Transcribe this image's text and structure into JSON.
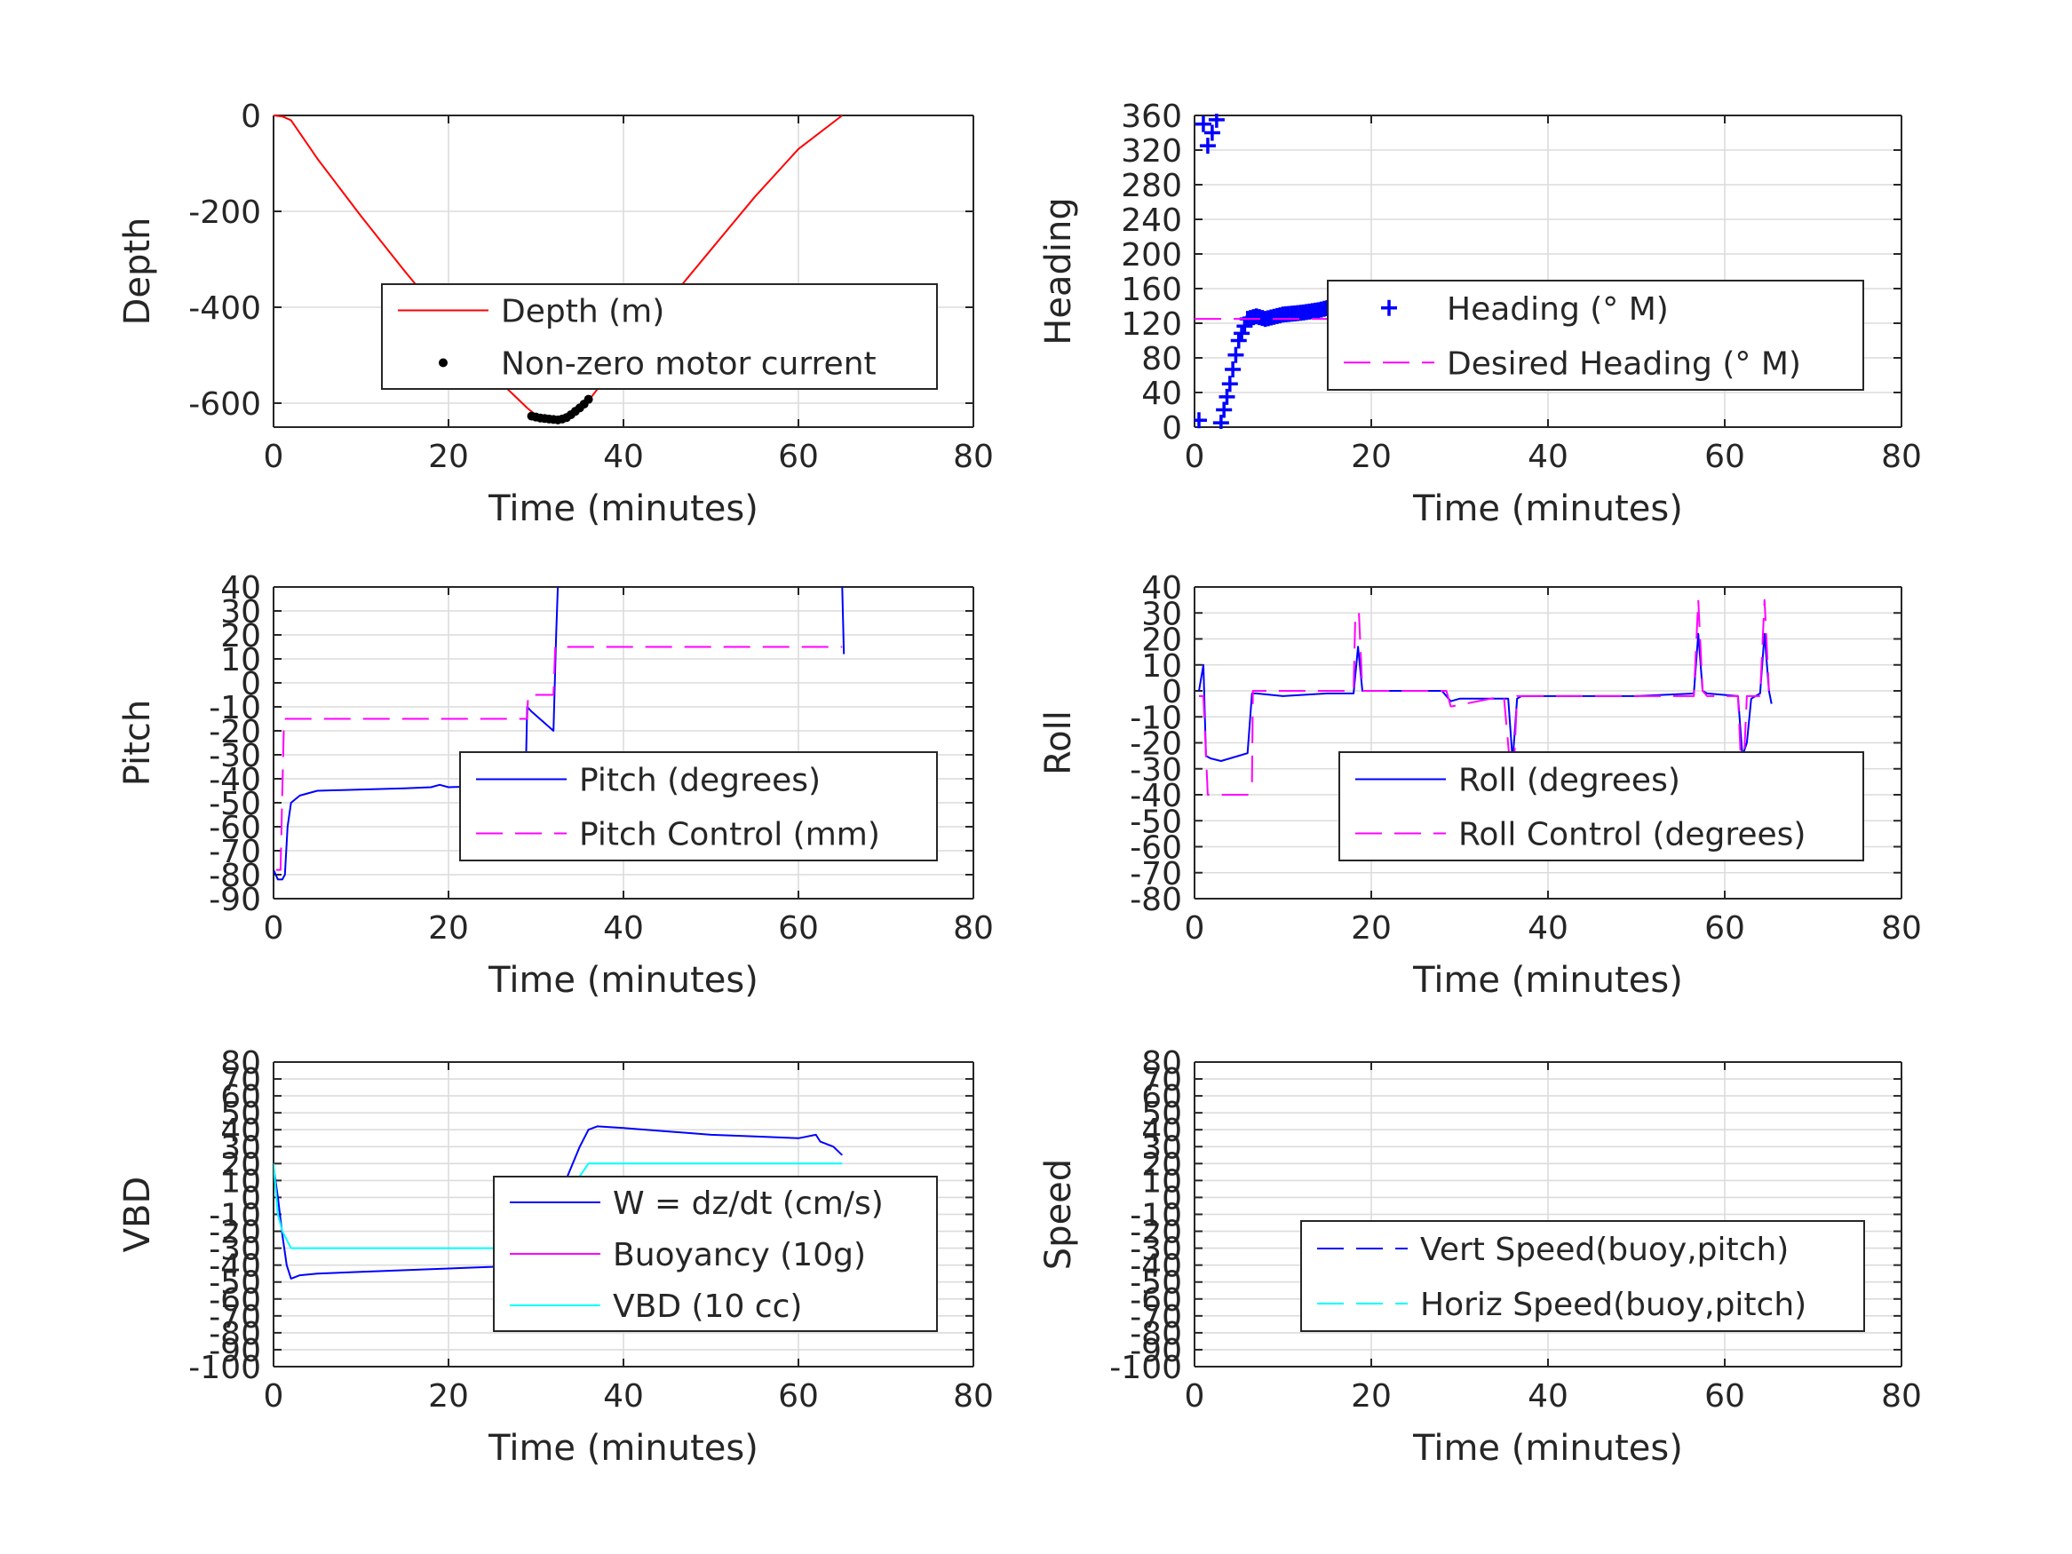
{
  "figure": {},
  "chart_data": [
    {
      "type": "line",
      "ylabel": "Depth",
      "xlabel": "Time (minutes)",
      "xlim": [
        0,
        80
      ],
      "ylim": [
        -650,
        0
      ],
      "xticks": [
        "0",
        "20",
        "40",
        "60",
        "80"
      ],
      "yticks": [
        "0",
        "-200",
        "-400",
        "-600"
      ],
      "ytick_values": [
        0,
        -200,
        -400,
        -600
      ],
      "grid": true,
      "legend_location": "middle-right",
      "series": [
        {
          "name": "Depth (m)",
          "color": "#ff0000",
          "style": "solid",
          "x": [
            0,
            1,
            2,
            5,
            10,
            15,
            20,
            25,
            29,
            30,
            31,
            32,
            33,
            34,
            35,
            36,
            40,
            45,
            50,
            55,
            60,
            65
          ],
          "y": [
            0,
            -2,
            -10,
            -90,
            -210,
            -325,
            -435,
            -540,
            -610,
            -625,
            -632,
            -635,
            -633,
            -625,
            -612,
            -595,
            -500,
            -390,
            -280,
            -170,
            -70,
            0
          ]
        },
        {
          "name": "Non-zero motor current",
          "color": "#000000",
          "style": "dots",
          "x": [
            29.5,
            30,
            30.5,
            31,
            31.5,
            32,
            32.5,
            33,
            33.5,
            34,
            34.5,
            35,
            35.5,
            36
          ],
          "y": [
            -627,
            -629,
            -631,
            -632,
            -633,
            -634,
            -635,
            -633,
            -630,
            -624,
            -617,
            -610,
            -602,
            -592
          ]
        }
      ]
    },
    {
      "type": "line",
      "ylabel": "Heading",
      "xlabel": "Time (minutes)",
      "xlim": [
        0,
        80
      ],
      "ylim": [
        0,
        360
      ],
      "xticks": [
        "0",
        "20",
        "40",
        "60",
        "80"
      ],
      "yticks": [
        "360",
        "320",
        "280",
        "240",
        "200",
        "160",
        "120",
        "80",
        "40",
        "0"
      ],
      "ytick_values": [
        360,
        320,
        280,
        240,
        200,
        160,
        120,
        80,
        40,
        0
      ],
      "grid": true,
      "legend_location": "middle-right",
      "series": [
        {
          "name": "Heading (° M)",
          "color": "#0000ff",
          "style": "plus",
          "x": [
            0.5,
            1,
            1.5,
            2,
            2.5,
            3,
            4,
            5,
            6,
            7,
            8,
            10,
            12,
            14,
            16,
            17,
            18,
            20,
            22,
            24,
            26,
            28,
            30,
            32,
            33,
            34,
            35,
            36,
            38,
            40,
            42,
            45,
            48,
            50,
            52,
            54,
            56,
            57,
            58,
            60,
            61,
            62,
            63,
            64,
            65
          ],
          "y": [
            8,
            350,
            325,
            340,
            355,
            5,
            50,
            100,
            125,
            128,
            125,
            130,
            132,
            135,
            140,
            145,
            125,
            122,
            120,
            118,
            122,
            118,
            128,
            150,
            158,
            150,
            130,
            120,
            118,
            122,
            120,
            118,
            125,
            122,
            120,
            118,
            110,
            115,
            120,
            125,
            150,
            140,
            115,
            110,
            150
          ]
        },
        {
          "name": "Desired Heading (° M)",
          "color": "#ff00ff",
          "style": "dashed",
          "x": [
            0,
            65
          ],
          "y": [
            125,
            125
          ]
        }
      ]
    },
    {
      "type": "line",
      "ylabel": "Pitch",
      "xlabel": "Time (minutes)",
      "xlim": [
        0,
        80
      ],
      "ylim": [
        -90,
        40
      ],
      "xticks": [
        "0",
        "20",
        "40",
        "60",
        "80"
      ],
      "yticks": [
        "40",
        "30",
        "20",
        "10",
        "0",
        "-10",
        "-20",
        "-30",
        "-40",
        "-50",
        "-60",
        "-70",
        "-80",
        "-90"
      ],
      "ytick_values": [
        40,
        30,
        20,
        10,
        0,
        -10,
        -20,
        -30,
        -40,
        -50,
        -60,
        -70,
        -80,
        -90
      ],
      "grid": true,
      "legend_location": "middle-right",
      "series": [
        {
          "name": "Pitch (degrees)",
          "color": "#0000ff",
          "style": "solid",
          "x": [
            0,
            0.5,
            1,
            1.3,
            1.6,
            2,
            3,
            5,
            10,
            15,
            18,
            19,
            20,
            25,
            28,
            28.8,
            29,
            29.5,
            32,
            32.3,
            32.5
          ],
          "y": [
            -78,
            -82,
            -82,
            -80,
            -60,
            -50,
            -47,
            -45,
            -44.5,
            -44,
            -43.5,
            -42.5,
            -43.5,
            -43,
            -42.5,
            -42,
            -10,
            -12,
            -20,
            20,
            40
          ]
        },
        {
          "name": "",
          "color": "#0000ff",
          "style": "solid",
          "x": [
            65,
            65.2
          ],
          "y": [
            40,
            12
          ]
        },
        {
          "name": "Pitch Control (mm)",
          "color": "#ff00ff",
          "style": "dashed",
          "x": [
            0.3,
            0.8,
            1,
            1.2,
            29,
            29.1,
            32,
            32.2,
            65
          ],
          "y": [
            -78,
            -78,
            -45,
            -15,
            -15,
            -5,
            -5,
            15,
            15
          ]
        }
      ]
    },
    {
      "type": "line",
      "ylabel": "Roll",
      "xlabel": "Time (minutes)",
      "xlim": [
        0,
        80
      ],
      "ylim": [
        -80,
        40
      ],
      "xticks": [
        "0",
        "20",
        "40",
        "60",
        "80"
      ],
      "yticks": [
        "40",
        "30",
        "20",
        "10",
        "0",
        "-10",
        "-20",
        "-30",
        "-40",
        "-50",
        "-60",
        "-70",
        "-80"
      ],
      "ytick_values": [
        40,
        30,
        20,
        10,
        0,
        -10,
        -20,
        -30,
        -40,
        -50,
        -60,
        -70,
        -80
      ],
      "grid": true,
      "legend_location": "middle-right",
      "series": [
        {
          "name": "Roll (degrees)",
          "color": "#0000ff",
          "style": "solid",
          "x": [
            0.5,
            1,
            1.3,
            1.8,
            3,
            6,
            6.5,
            7,
            10,
            15,
            18,
            18.5,
            19,
            20,
            28,
            29,
            30,
            35.5,
            36,
            36.5,
            37,
            40,
            50,
            56.5,
            57,
            57.5,
            58,
            61.5,
            62,
            62.5,
            63,
            64,
            64.5,
            65,
            65.3
          ],
          "y": [
            0,
            10,
            -25,
            -26,
            -27,
            -24,
            -1,
            -1,
            -2,
            -1,
            -1,
            17,
            0,
            0,
            0,
            -4,
            -3,
            -3,
            -27,
            -3,
            -2,
            -2,
            -2,
            -1,
            22,
            0,
            -1,
            -2,
            -25,
            -20,
            -3,
            -1,
            22,
            0,
            -5
          ]
        },
        {
          "name": "Roll Control (degrees)",
          "color": "#ff00ff",
          "style": "dashed",
          "x": [
            0.5,
            1,
            1.5,
            2,
            6,
            6.5,
            6.6,
            7,
            18,
            18.2,
            18.6,
            19,
            28.5,
            29,
            29.1,
            35,
            36,
            36.5,
            37,
            56.5,
            57,
            57.5,
            58,
            61.5,
            62,
            62.5,
            63,
            64,
            64.5,
            65
          ],
          "y": [
            -2,
            -2,
            -40,
            -40,
            -40,
            -35,
            0,
            0,
            0,
            30,
            30,
            0,
            0,
            -6,
            -6,
            -2,
            -40,
            -2,
            -2,
            -2,
            35,
            0,
            -2,
            -2,
            -40,
            -2,
            -2,
            -2,
            35,
            0
          ]
        }
      ]
    },
    {
      "type": "line",
      "ylabel": "VBD",
      "xlabel": "Time (minutes)",
      "xlim": [
        0,
        80
      ],
      "ylim": [
        -100,
        80
      ],
      "xticks": [
        "0",
        "20",
        "40",
        "60",
        "80"
      ],
      "yticks": [
        "80",
        "70",
        "60",
        "50",
        "40",
        "30",
        "20",
        "10",
        "0",
        "-10",
        "-20",
        "-30",
        "-40",
        "-50",
        "-60",
        "-70",
        "-80",
        "-90",
        "-100"
      ],
      "ytick_values": [
        80,
        70,
        60,
        50,
        40,
        30,
        20,
        10,
        0,
        -10,
        -20,
        -30,
        -40,
        -50,
        -60,
        -70,
        -80,
        -90,
        -100
      ],
      "grid": true,
      "legend_location": "middle-right",
      "series": [
        {
          "name": "W = dz/dt (cm/s)",
          "color": "#0000ff",
          "style": "solid",
          "x": [
            0,
            0.5,
            1,
            1.5,
            2,
            3,
            5,
            10,
            15,
            20,
            25,
            28,
            29,
            29.3,
            31,
            32,
            32.3,
            33,
            35,
            36,
            37,
            40,
            45,
            50,
            55,
            60,
            62,
            62.5,
            64,
            65
          ],
          "y": [
            18,
            0,
            -22,
            -40,
            -48,
            -46,
            -45,
            -44,
            -43,
            -42,
            -41,
            -40,
            -38,
            -30,
            -25,
            -20,
            -12,
            5,
            30,
            40,
            42,
            41,
            39,
            37,
            36,
            35,
            37,
            33,
            30,
            25
          ]
        },
        {
          "name": "Buoyancy (10g)",
          "color": "#ff00ff",
          "style": "solid",
          "x": [],
          "y": []
        },
        {
          "name": "VBD (10 cc)",
          "color": "#00ffff",
          "style": "solid",
          "x": [
            0,
            0.5,
            1,
            2,
            28.5,
            29,
            30,
            36,
            37,
            65
          ],
          "y": [
            20,
            -10,
            -20,
            -30,
            -30,
            -30,
            -25,
            20,
            20,
            20
          ]
        }
      ]
    },
    {
      "type": "line",
      "ylabel": "Speed",
      "xlabel": "Time (minutes)",
      "xlim": [
        0,
        80
      ],
      "ylim": [
        -100,
        80
      ],
      "xticks": [
        "0",
        "20",
        "40",
        "60",
        "80"
      ],
      "yticks": [
        "80",
        "70",
        "60",
        "50",
        "40",
        "30",
        "20",
        "10",
        "0",
        "-10",
        "-20",
        "-30",
        "-40",
        "-50",
        "-60",
        "-70",
        "-80",
        "-90",
        "-100"
      ],
      "ytick_values": [
        80,
        70,
        60,
        50,
        40,
        30,
        20,
        10,
        0,
        -10,
        -20,
        -30,
        -40,
        -50,
        -60,
        -70,
        -80,
        -90,
        -100
      ],
      "grid": true,
      "legend_location": "lower-right",
      "series": [
        {
          "name": "Vert Speed(buoy,pitch)",
          "color": "#0000ff",
          "style": "dashed",
          "x": [],
          "y": []
        },
        {
          "name": "Horiz Speed(buoy,pitch)",
          "color": "#00ffff",
          "style": "dashed",
          "x": [],
          "y": []
        }
      ]
    }
  ]
}
